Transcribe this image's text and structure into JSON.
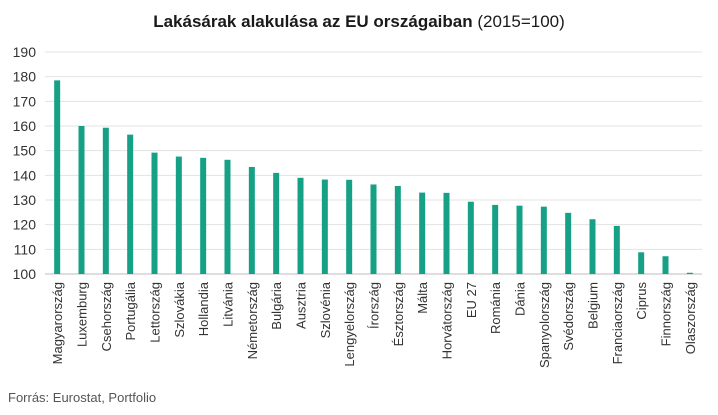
{
  "chart_data": {
    "type": "bar",
    "title": "Lakásárak alakulása az EU országaiban",
    "subtitle": "(2015=100)",
    "xlabel": "",
    "ylabel": "",
    "ylim": [
      100,
      190
    ],
    "yticks": [
      100,
      110,
      120,
      130,
      140,
      150,
      160,
      170,
      180,
      190
    ],
    "grid": true,
    "legend": "none",
    "bar_color": "#16a085",
    "categories": [
      "Magyarország",
      "Luxemburg",
      "Csehország",
      "Portugália",
      "Lettország",
      "Szlovákia",
      "Hollandia",
      "Litvánia",
      "Németország",
      "Bulgária",
      "Ausztria",
      "Szlovénia",
      "Lengyelország",
      "Írország",
      "Észtország",
      "Málta",
      "Horvátország",
      "EU 27",
      "Románia",
      "Dánia",
      "Spanyolország",
      "Svédország",
      "Belgium",
      "Franciaország",
      "Ciprus",
      "Finnország",
      "Olaszország"
    ],
    "values": [
      178.5,
      160,
      159.3,
      156.5,
      149.2,
      147.6,
      147.1,
      146.3,
      143.4,
      141,
      139,
      138.3,
      138.2,
      136.3,
      135.7,
      133,
      132.9,
      129.3,
      128,
      127.7,
      127.3,
      124.8,
      122.2,
      119.5,
      108.8,
      107.2,
      100.5
    ]
  },
  "source": "Forrás: Eurostat, Portfolio"
}
